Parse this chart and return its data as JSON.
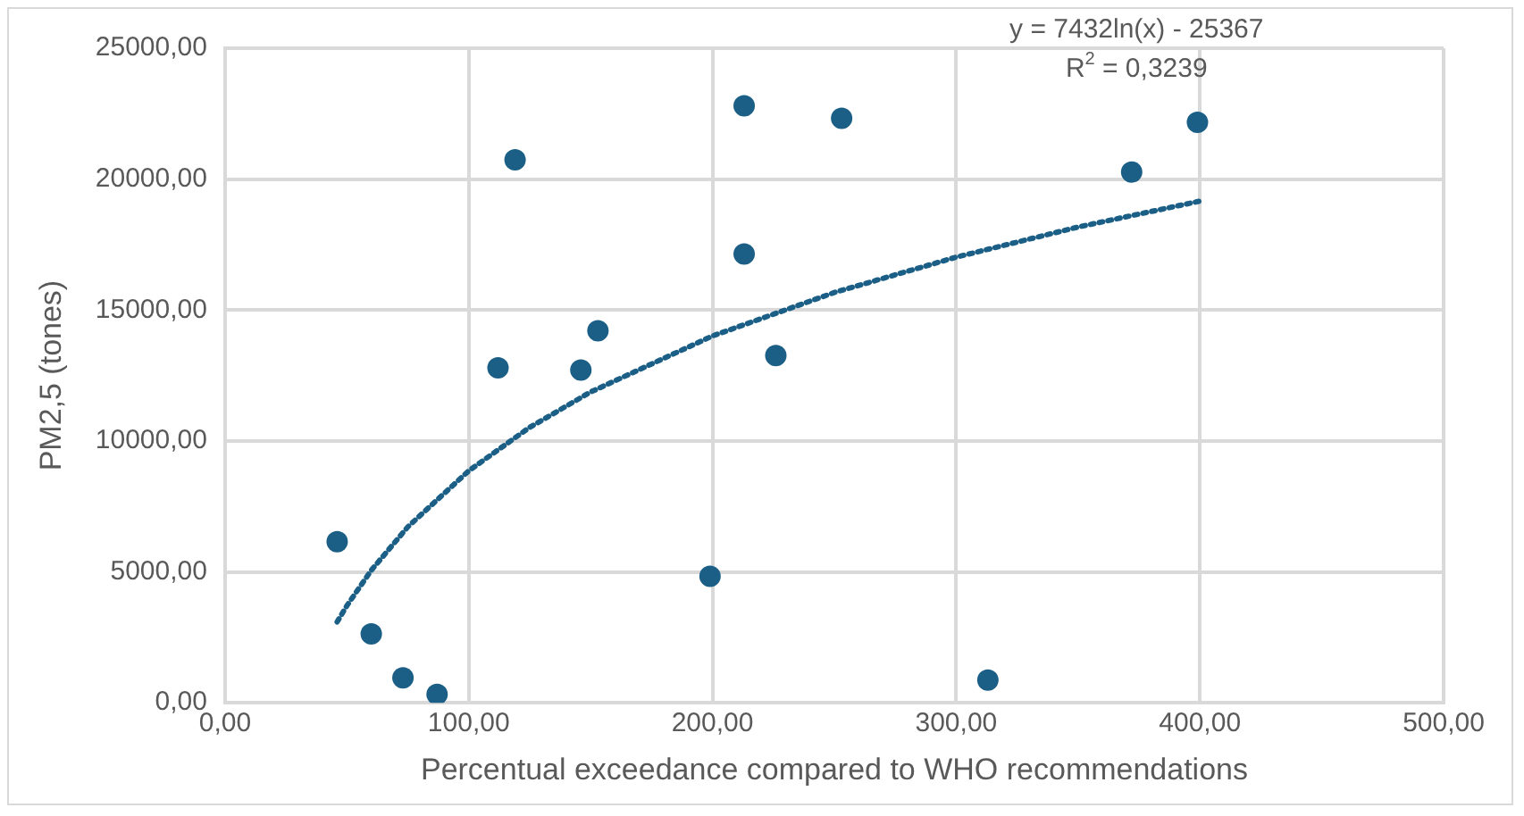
{
  "chart_data": {
    "type": "scatter",
    "xlabel": "Percentual exceedance compared to WHO recommendations",
    "ylabel": "PM2,5 (tones)",
    "annotations": [
      "y = 7432ln(x) - 25367",
      "R$^{2}$ = 0,3239"
    ],
    "xlim": [
      0,
      500
    ],
    "xticks": [
      {
        "value": 0,
        "label": "0,00"
      },
      {
        "value": 100,
        "label": "100,00"
      },
      {
        "value": 200,
        "label": "200,00"
      },
      {
        "value": 300,
        "label": "300,00"
      },
      {
        "value": 400,
        "label": "400,00"
      },
      {
        "value": 500,
        "label": "500,00"
      }
    ],
    "ylim": [
      0,
      25000
    ],
    "yticks": [
      {
        "value": 0,
        "label": "0,00"
      },
      {
        "value": 5000,
        "label": "5000,00"
      },
      {
        "value": 10000,
        "label": "10000,00"
      },
      {
        "value": 15000,
        "label": "15000,00"
      },
      {
        "value": 20000,
        "label": "20000,00"
      },
      {
        "value": 25000,
        "label": "25000,00"
      }
    ],
    "grid": true,
    "legend": false,
    "marker": "circle",
    "series": [
      {
        "type": "scatter",
        "color": "#1b5f86",
        "x": [
          46,
          60,
          73,
          87,
          112,
          119,
          146,
          153,
          199,
          213,
          213,
          226,
          253,
          313,
          372,
          399
        ],
        "values": [
          6150,
          2630,
          950,
          320,
          12790,
          20740,
          12710,
          14210,
          4830,
          22800,
          17140,
          13260,
          22320,
          870,
          20270,
          22170
        ]
      },
      {
        "type": "line",
        "color": "#1b5f86",
        "line_style": "dotted",
        "marker": "none",
        "x": [
          46,
          50,
          60,
          75,
          100,
          125,
          150,
          200,
          250,
          300,
          350,
          400
        ],
        "values": [
          3090,
          3710,
          5060,
          6720,
          8860,
          10520,
          11870,
          14010,
          15670,
          17020,
          18170,
          19160
        ]
      }
    ]
  }
}
